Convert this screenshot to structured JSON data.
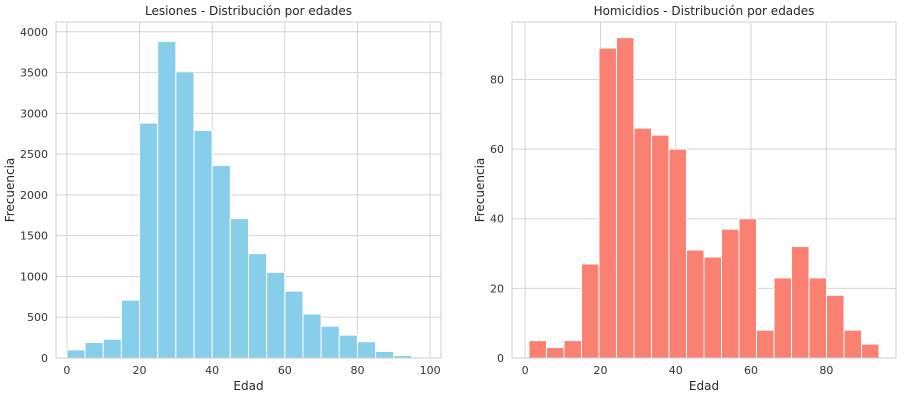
{
  "chart_data": [
    {
      "type": "bar",
      "title": "Lesiones - Distribución por edades",
      "xlabel": "Edad",
      "ylabel": "Frecuencia",
      "xlim": [
        -3,
        103
      ],
      "ylim": [
        0,
        4120
      ],
      "xticks": [
        0,
        20,
        40,
        60,
        80,
        100
      ],
      "yticks": [
        0,
        500,
        1000,
        1500,
        2000,
        2500,
        3000,
        3500,
        4000
      ],
      "bin_edges": [
        0,
        5,
        10,
        15,
        20,
        25,
        30,
        35,
        40,
        45,
        50,
        55,
        60,
        65,
        70,
        75,
        80,
        85,
        90,
        95,
        100
      ],
      "values": [
        100,
        190,
        230,
        710,
        2880,
        3880,
        3510,
        2790,
        2360,
        1710,
        1280,
        1050,
        820,
        540,
        390,
        280,
        200,
        80,
        30,
        5
      ],
      "color": "#87CEEB",
      "grid": true
    },
    {
      "type": "bar",
      "title": "Homicidios - Distribución por edades",
      "xlabel": "Edad",
      "ylabel": "Frecuencia",
      "xlim": [
        -3.5,
        98.5
      ],
      "ylim": [
        0,
        96.5
      ],
      "xticks": [
        0,
        20,
        40,
        60,
        80
      ],
      "yticks": [
        0,
        20,
        40,
        60,
        80
      ],
      "bin_edges": [
        1.0,
        5.65,
        10.3,
        14.95,
        19.6,
        24.25,
        28.9,
        33.55,
        38.2,
        42.85,
        47.5,
        52.15,
        56.8,
        61.45,
        66.1,
        70.75,
        75.4,
        80.05,
        84.7,
        89.35,
        94.0
      ],
      "values": [
        5,
        3,
        5,
        27,
        89,
        92,
        66,
        64,
        60,
        31,
        29,
        37,
        40,
        8,
        23,
        32,
        23,
        18,
        8,
        4
      ],
      "color": "#FA8072",
      "grid": true
    }
  ]
}
